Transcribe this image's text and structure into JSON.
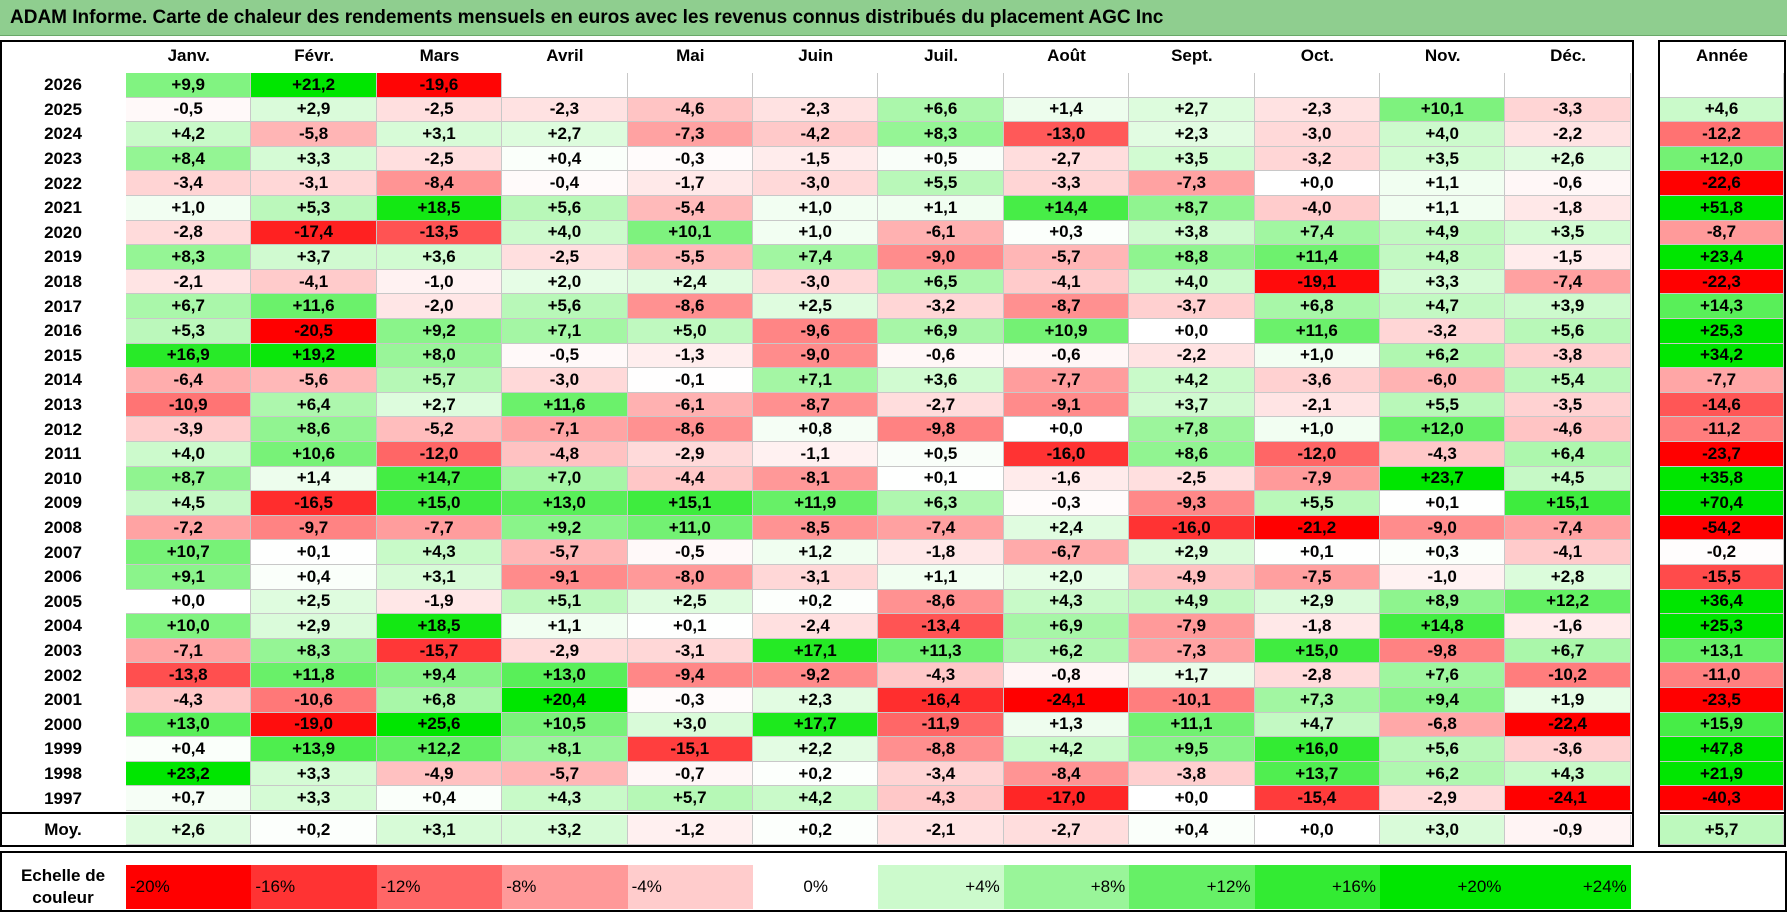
{
  "title": "ADAM Informe. Carte de chaleur des rendements mensuels en euros avec les revenus connus distribués du placement AGC Inc",
  "chart_data": {
    "type": "heatmap",
    "title": "ADAM Informe. Carte de chaleur des rendements mensuels en euros avec les revenus connus distribués du placement AGC Inc",
    "columns": [
      "Janv.",
      "Févr.",
      "Mars",
      "Avril",
      "Mai",
      "Juin",
      "Juil.",
      "Août",
      "Sept.",
      "Oct.",
      "Nov.",
      "Déc."
    ],
    "year_column_label": "Année",
    "rows": [
      {
        "year": "2026",
        "values": [
          9.9,
          21.2,
          -19.6,
          null,
          null,
          null,
          null,
          null,
          null,
          null,
          null,
          null
        ],
        "annual": null
      },
      {
        "year": "2025",
        "values": [
          -0.5,
          2.9,
          -2.5,
          -2.3,
          -4.6,
          -2.3,
          6.6,
          1.4,
          2.7,
          -2.3,
          10.1,
          -3.3
        ],
        "annual": 4.6
      },
      {
        "year": "2024",
        "values": [
          4.2,
          -5.8,
          3.1,
          2.7,
          -7.3,
          -4.2,
          8.3,
          -13.0,
          2.3,
          -3.0,
          4.0,
          -2.2
        ],
        "annual": -12.2
      },
      {
        "year": "2023",
        "values": [
          8.4,
          3.3,
          -2.5,
          0.4,
          -0.3,
          -1.5,
          0.5,
          -2.7,
          3.5,
          -3.2,
          3.5,
          2.6
        ],
        "annual": 12.0
      },
      {
        "year": "2022",
        "values": [
          -3.4,
          -3.1,
          -8.4,
          -0.4,
          -1.7,
          -3.0,
          5.5,
          -3.3,
          -7.3,
          0.0,
          1.1,
          -0.6
        ],
        "annual": -22.6
      },
      {
        "year": "2021",
        "values": [
          1.0,
          5.3,
          18.5,
          5.6,
          -5.4,
          1.0,
          1.1,
          14.4,
          8.7,
          -4.0,
          1.1,
          -1.8
        ],
        "annual": 51.8
      },
      {
        "year": "2020",
        "values": [
          -2.8,
          -17.4,
          -13.5,
          4.0,
          10.1,
          1.0,
          -6.1,
          0.3,
          3.8,
          7.4,
          4.9,
          3.5
        ],
        "annual": -8.7
      },
      {
        "year": "2019",
        "values": [
          8.3,
          3.7,
          3.6,
          -2.5,
          -5.5,
          7.4,
          -9.0,
          -5.7,
          8.8,
          11.4,
          4.8,
          -1.5
        ],
        "annual": 23.4
      },
      {
        "year": "2018",
        "values": [
          -2.1,
          -4.1,
          -1.0,
          2.0,
          2.4,
          -3.0,
          6.5,
          -4.1,
          4.0,
          -19.1,
          3.3,
          -7.4
        ],
        "annual": -22.3
      },
      {
        "year": "2017",
        "values": [
          6.7,
          11.6,
          -2.0,
          5.6,
          -8.6,
          2.5,
          -3.2,
          -8.7,
          -3.7,
          6.8,
          4.7,
          3.9
        ],
        "annual": 14.3
      },
      {
        "year": "2016",
        "values": [
          5.3,
          -20.5,
          9.2,
          7.1,
          5.0,
          -9.6,
          6.9,
          10.9,
          0.0,
          11.6,
          -3.2,
          5.6
        ],
        "annual": 25.3
      },
      {
        "year": "2015",
        "values": [
          16.9,
          19.2,
          8.0,
          -0.5,
          -1.3,
          -9.0,
          -0.6,
          -0.6,
          -2.2,
          1.0,
          6.2,
          -3.8
        ],
        "annual": 34.2
      },
      {
        "year": "2014",
        "values": [
          -6.4,
          -5.6,
          5.7,
          -3.0,
          -0.1,
          7.1,
          3.6,
          -7.7,
          4.2,
          -3.6,
          -6.0,
          5.4
        ],
        "annual": -7.7
      },
      {
        "year": "2013",
        "values": [
          -10.9,
          6.4,
          2.7,
          11.6,
          -6.1,
          -8.7,
          -2.7,
          -9.1,
          3.7,
          -2.1,
          5.5,
          -3.5
        ],
        "annual": -14.6
      },
      {
        "year": "2012",
        "values": [
          -3.9,
          8.6,
          -5.2,
          -7.1,
          -8.6,
          0.8,
          -9.8,
          0.0,
          7.8,
          1.0,
          12.0,
          -4.6
        ],
        "annual": -11.2
      },
      {
        "year": "2011",
        "values": [
          4.0,
          10.6,
          -12.0,
          -4.8,
          -2.9,
          -1.1,
          0.5,
          -16.0,
          8.6,
          -12.0,
          -4.3,
          6.4
        ],
        "annual": -23.7
      },
      {
        "year": "2010",
        "values": [
          8.7,
          1.4,
          14.7,
          7.0,
          -4.4,
          -8.1,
          0.1,
          -1.6,
          -2.5,
          -7.9,
          23.7,
          4.5
        ],
        "annual": 35.8
      },
      {
        "year": "2009",
        "values": [
          4.5,
          -16.5,
          15.0,
          13.0,
          15.1,
          11.9,
          6.3,
          -0.3,
          -9.3,
          5.5,
          0.1,
          15.1
        ],
        "annual": 70.4
      },
      {
        "year": "2008",
        "values": [
          -7.2,
          -9.7,
          -7.7,
          9.2,
          11.0,
          -8.5,
          -7.4,
          2.4,
          -16.0,
          -21.2,
          -9.0,
          -7.4
        ],
        "annual": -54.2
      },
      {
        "year": "2007",
        "values": [
          10.7,
          0.1,
          4.3,
          -5.7,
          -0.5,
          1.2,
          -1.8,
          -6.7,
          2.9,
          0.1,
          0.3,
          -4.1
        ],
        "annual": -0.2
      },
      {
        "year": "2006",
        "values": [
          9.1,
          0.4,
          3.1,
          -9.1,
          -8.0,
          -3.1,
          1.1,
          2.0,
          -4.9,
          -7.5,
          -1.0,
          2.8
        ],
        "annual": -15.5
      },
      {
        "year": "2005",
        "values": [
          0.0,
          2.5,
          -1.9,
          5.1,
          2.5,
          0.2,
          -8.6,
          4.3,
          4.9,
          2.9,
          8.9,
          12.2
        ],
        "annual": 36.4
      },
      {
        "year": "2004",
        "values": [
          10.0,
          2.9,
          18.5,
          1.1,
          0.1,
          -2.4,
          -13.4,
          6.9,
          -7.9,
          -1.8,
          14.8,
          -1.6
        ],
        "annual": 25.3
      },
      {
        "year": "2003",
        "values": [
          -7.1,
          8.3,
          -15.7,
          -2.9,
          -3.1,
          17.1,
          11.3,
          6.2,
          -7.3,
          15.0,
          -9.8,
          6.7
        ],
        "annual": 13.1
      },
      {
        "year": "2002",
        "values": [
          -13.8,
          11.8,
          9.4,
          13.0,
          -9.4,
          -9.2,
          -4.3,
          -0.8,
          1.7,
          -2.8,
          7.6,
          -10.2
        ],
        "annual": -11.0
      },
      {
        "year": "2001",
        "values": [
          -4.3,
          -10.6,
          6.8,
          20.4,
          -0.3,
          2.3,
          -16.4,
          -24.1,
          -10.1,
          7.3,
          9.4,
          1.9
        ],
        "annual": -23.5
      },
      {
        "year": "2000",
        "values": [
          13.0,
          -19.0,
          25.6,
          10.5,
          3.0,
          17.7,
          -11.9,
          1.3,
          11.1,
          4.7,
          -6.8,
          -22.4
        ],
        "annual": 15.9
      },
      {
        "year": "1999",
        "values": [
          0.4,
          13.9,
          12.2,
          8.1,
          -15.1,
          2.2,
          -8.8,
          4.2,
          9.5,
          16.0,
          5.6,
          -3.6
        ],
        "annual": 47.8
      },
      {
        "year": "1998",
        "values": [
          23.2,
          3.3,
          -4.9,
          -5.7,
          -0.7,
          0.2,
          -3.4,
          -8.4,
          -3.8,
          13.7,
          6.2,
          4.3
        ],
        "annual": 21.9
      },
      {
        "year": "1997",
        "values": [
          0.7,
          3.3,
          0.4,
          4.3,
          5.7,
          4.2,
          -4.3,
          -17.0,
          0.0,
          -15.4,
          -2.9,
          -24.1
        ],
        "annual": -40.3
      }
    ],
    "average": {
      "label": "Moy.",
      "values": [
        2.6,
        0.2,
        3.1,
        3.2,
        -1.2,
        0.2,
        -2.1,
        -2.7,
        0.4,
        0.0,
        3.0,
        -0.9
      ],
      "annual": 5.7
    },
    "scale": {
      "label_line1": "Echelle de",
      "label_line2": "couleur",
      "steps": [
        {
          "label": "-20%",
          "value": -20,
          "align": "left"
        },
        {
          "label": "-16%",
          "value": -16,
          "align": "left"
        },
        {
          "label": "-12%",
          "value": -12,
          "align": "left"
        },
        {
          "label": "-8%",
          "value": -8,
          "align": "left"
        },
        {
          "label": "-4%",
          "value": -4,
          "align": "left"
        },
        {
          "label": "0%",
          "value": 0,
          "align": "center"
        },
        {
          "label": "+4%",
          "value": 4,
          "align": "right"
        },
        {
          "label": "+8%",
          "value": 8,
          "align": "right"
        },
        {
          "label": "+12%",
          "value": 12,
          "align": "right"
        },
        {
          "label": "+16%",
          "value": 16,
          "align": "right"
        },
        {
          "label": "+20%",
          "value": 20,
          "align": "right"
        },
        {
          "label": "+24%",
          "value": 24,
          "align": "right"
        }
      ]
    }
  }
}
